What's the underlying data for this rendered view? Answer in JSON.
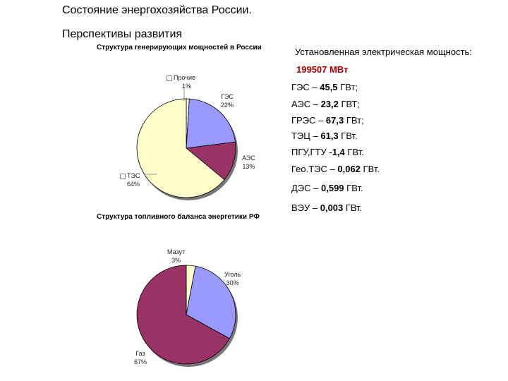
{
  "title": "Состояние энергохозяйства России.",
  "subtitle": "Перспективы развития",
  "info": {
    "capacity_label": "Установленная электрическая мощность:",
    "capacity_value": "199507 МВт",
    "rows": [
      {
        "name": "ГЭС – ",
        "value": "45,5",
        "unit": " ГВт;"
      },
      {
        "name": "АЭС – ",
        "value": "23,2",
        "unit": " ГВТ;"
      },
      {
        "name": "ГРЭС – ",
        "value": "67,3",
        "unit": " ГВт;"
      },
      {
        "name": "ТЭЦ – ",
        "value": "61,3",
        "unit": " ГВт."
      },
      {
        "name": "ПГУ,ГТУ -",
        "value": "1,4",
        "unit": " ГВт."
      },
      {
        "name": "Гео.ТЭС – ",
        "value": "0,062",
        "unit": " ГВт."
      },
      {
        "name": "ДЭС – ",
        "value": "0,599",
        "unit": " ГВт."
      },
      {
        "name": "ВЭУ – ",
        "value": "0,003",
        "unit": " ГВт."
      }
    ]
  },
  "chart_data": [
    {
      "type": "pie",
      "title": "Структура генерирующих мощностей в России",
      "slices": [
        {
          "name": "Прочие",
          "value": 1,
          "label": "1%",
          "color": "#ffffff"
        },
        {
          "name": "ГЭС",
          "value": 22,
          "label": "22%",
          "color": "#9999ff"
        },
        {
          "name": "АЭС",
          "value": 13,
          "label": "13%",
          "color": "#993366"
        },
        {
          "name": "ТЭС",
          "value": 64,
          "label": "64%",
          "color": "#ffffcc"
        }
      ]
    },
    {
      "type": "pie",
      "title": "Структура топливного баланса энергетики РФ",
      "slices": [
        {
          "name": "Мазут",
          "value": 3,
          "label": "3%",
          "color": "#ffffcc"
        },
        {
          "name": "Уголь",
          "value": 30,
          "label": "30%",
          "color": "#9999ff"
        },
        {
          "name": "Газ",
          "value": 67,
          "label": "67%",
          "color": "#993366"
        }
      ]
    }
  ]
}
